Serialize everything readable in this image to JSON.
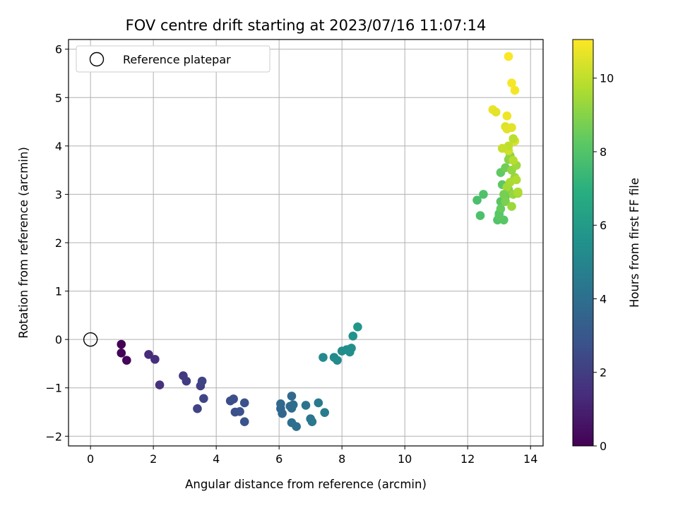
{
  "chart_data": {
    "type": "scatter",
    "title": "FOV centre drift starting at 2023/07/16 11:07:14",
    "xlabel": "Angular distance from reference (arcmin)",
    "ylabel": "Rotation from reference (arcmin)",
    "xlim": [
      -0.7,
      14.4
    ],
    "ylim": [
      -2.2,
      6.2
    ],
    "xticks": [
      0,
      2,
      4,
      6,
      8,
      10,
      12,
      14
    ],
    "yticks": [
      -2,
      -1,
      0,
      1,
      2,
      3,
      4,
      5,
      6
    ],
    "grid": true,
    "legend": {
      "position": "top-left",
      "entries": [
        "Reference platepar"
      ]
    },
    "reference_point": {
      "x": 0,
      "y": 0,
      "label": "Reference platepar"
    },
    "colorbar": {
      "label": "Hours from first FF file",
      "colormap": "viridis",
      "range": [
        0,
        11.05
      ],
      "ticks": [
        0,
        2,
        4,
        6,
        8,
        10
      ]
    },
    "series": [
      {
        "x": [
          0.98,
          0.98,
          1.15,
          1.85,
          2.05,
          2.2,
          2.95,
          3.05,
          3.4,
          3.5,
          3.55,
          3.6,
          4.45,
          4.55,
          4.6,
          4.75,
          4.9,
          4.9,
          6.05,
          6.1,
          6.05,
          6.4,
          6.35,
          6.4,
          6.45,
          6.4,
          6.55,
          6.85,
          7.0,
          7.05,
          7.25,
          7.45,
          7.4,
          7.75,
          7.85,
          8.0,
          8.15,
          8.25,
          8.3,
          8.35,
          8.5,
          12.3,
          12.4,
          12.5,
          12.8,
          12.9,
          12.95,
          13.0,
          13.05,
          13.05,
          13.1,
          13.15,
          13.2,
          13.2,
          13.25,
          13.3,
          13.3,
          13.35,
          13.4,
          13.45,
          13.5,
          13.55,
          13.6,
          13.3,
          13.2,
          13.25,
          13.4,
          13.5,
          13.45,
          13.35,
          13.25,
          13.15,
          13.05,
          13.0,
          13.2,
          13.4,
          13.55,
          13.6,
          13.45,
          13.3,
          13.1,
          13.3,
          13.4,
          13.5
        ],
        "y": [
          -0.1,
          -0.28,
          -0.43,
          -0.31,
          -0.41,
          -0.94,
          -0.75,
          -0.86,
          -1.43,
          -0.96,
          -0.86,
          -1.22,
          -1.27,
          -1.23,
          -1.5,
          -1.49,
          -1.31,
          -1.7,
          -1.43,
          -1.53,
          -1.33,
          -1.17,
          -1.38,
          -1.42,
          -1.35,
          -1.72,
          -1.8,
          -1.36,
          -1.64,
          -1.7,
          -1.31,
          -1.51,
          -0.37,
          -0.37,
          -0.43,
          -0.24,
          -0.21,
          -0.26,
          -0.18,
          0.07,
          0.26,
          2.88,
          2.56,
          3.0,
          4.75,
          4.7,
          2.47,
          2.6,
          2.85,
          3.45,
          3.2,
          2.47,
          2.95,
          3.55,
          4.62,
          3.72,
          3.1,
          3.8,
          3.5,
          3.0,
          3.35,
          3.6,
          3.02,
          3.9,
          4.4,
          4.35,
          4.38,
          4.1,
          3.7,
          3.25,
          3.15,
          3.0,
          2.7,
          2.55,
          2.85,
          2.75,
          3.3,
          3.05,
          4.15,
          4.0,
          3.95,
          5.85,
          5.3,
          5.15
        ],
        "t": [
          0.05,
          0.1,
          0.2,
          1.35,
          1.45,
          1.55,
          1.85,
          1.95,
          2.2,
          2.1,
          2.25,
          2.3,
          2.6,
          2.65,
          2.7,
          2.75,
          2.8,
          2.85,
          3.6,
          3.65,
          3.7,
          3.75,
          3.8,
          3.85,
          3.9,
          3.95,
          4.0,
          4.2,
          4.3,
          4.35,
          4.45,
          4.55,
          5.15,
          5.2,
          5.25,
          5.35,
          5.4,
          5.45,
          5.5,
          5.55,
          5.75,
          7.8,
          7.85,
          7.9,
          10.7,
          10.6,
          8.0,
          8.05,
          8.1,
          8.3,
          8.25,
          8.15,
          8.5,
          8.6,
          10.8,
          9.0,
          8.9,
          9.1,
          9.2,
          9.25,
          9.3,
          9.4,
          9.45,
          10.2,
          10.5,
          10.55,
          10.6,
          10.4,
          9.8,
          9.6,
          9.5,
          8.7,
          8.4,
          8.2,
          8.8,
          9.35,
          9.7,
          9.65,
          9.9,
          10.0,
          10.1,
          11.0,
          10.95,
          10.9
        ]
      }
    ]
  }
}
